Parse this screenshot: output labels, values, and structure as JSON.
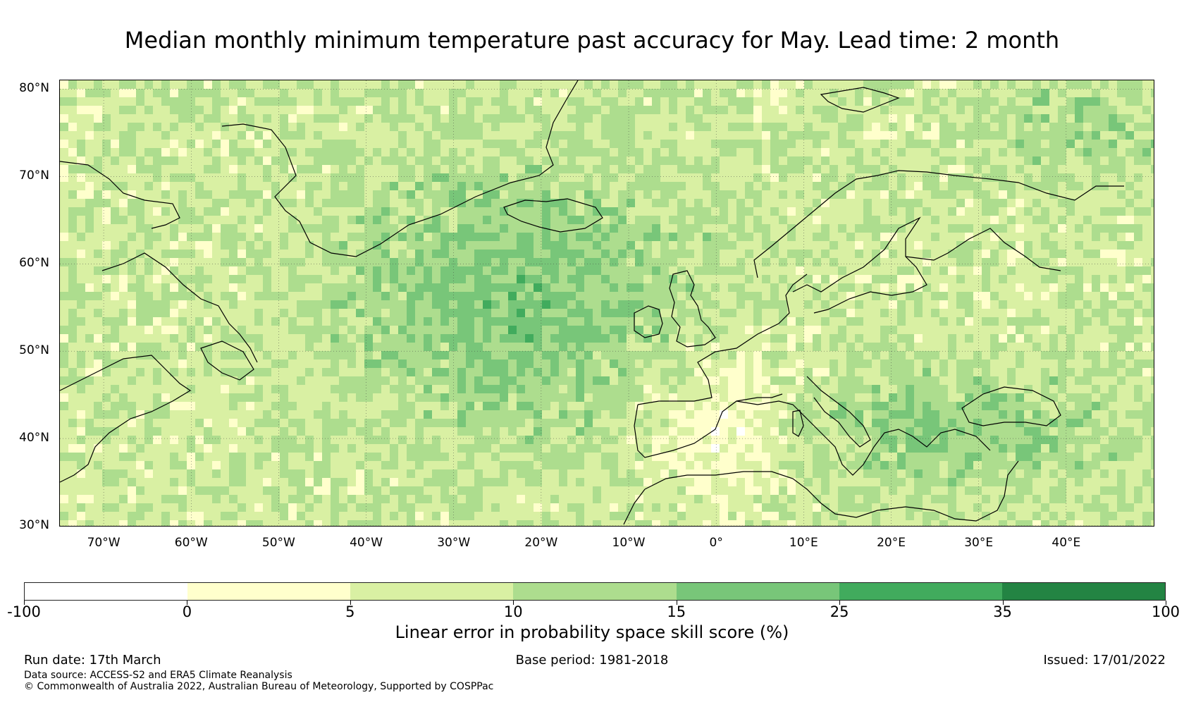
{
  "title": "Median monthly minimum temperature past accuracy for May. Lead time: 2 month",
  "map": {
    "lat_range": [
      30,
      81
    ],
    "lon_range": [
      -75,
      50
    ],
    "lat_labels": [
      "30°N",
      "40°N",
      "50°N",
      "60°N",
      "70°N",
      "80°N"
    ],
    "lon_labels": [
      "70°W",
      "60°W",
      "50°W",
      "40°W",
      "30°W",
      "20°W",
      "10°W",
      "0°",
      "10°E",
      "20°E",
      "30°E",
      "40°E"
    ],
    "lat_values": [
      30,
      40,
      50,
      60,
      70,
      80
    ],
    "lon_values": [
      -70,
      -60,
      -50,
      -40,
      -30,
      -20,
      -10,
      0,
      10,
      20,
      30,
      40
    ]
  },
  "colorbar": {
    "ticks": [
      "-100",
      "0",
      "5",
      "10",
      "15",
      "25",
      "35",
      "100"
    ],
    "colors": [
      "#ffffff",
      "#ffffcc",
      "#d9f0a3",
      "#addd8e",
      "#78c679",
      "#41ab5d",
      "#238443"
    ],
    "label": "Linear error in probability space skill score (%)"
  },
  "footer": {
    "run_date": "Run date: 17th March",
    "base_period": "Base period: 1981-2018",
    "issued": "Issued: 17/01/2022",
    "data_source": "Data source: ACCESS-S2 and ERA5 Climate Reanalysis",
    "copyright": "© Commonwealth of Australia 2022, Australian Bureau of Meteorology, Supported by COSPPac"
  }
}
